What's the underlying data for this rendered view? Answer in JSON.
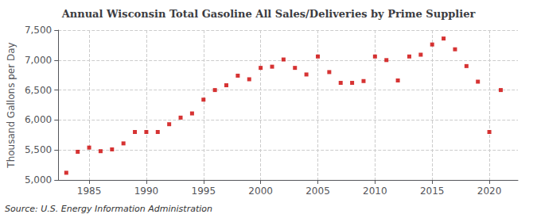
{
  "chart_data": {
    "type": "scatter",
    "title": "Annual Wisconsin Total Gasoline All Sales/Deliveries by Prime Supplier",
    "ylabel": "Thousand Gallons per Day",
    "source": "Source: U.S. Energy Information Administration",
    "x": [
      1983,
      1984,
      1985,
      1986,
      1987,
      1988,
      1989,
      1990,
      1991,
      1992,
      1993,
      1994,
      1995,
      1996,
      1997,
      1998,
      1999,
      2000,
      2001,
      2002,
      2003,
      2004,
      2005,
      2006,
      2007,
      2008,
      2009,
      2010,
      2011,
      2012,
      2013,
      2014,
      2015,
      2016,
      2017,
      2018,
      2019,
      2020,
      2021
    ],
    "values": [
      5120,
      5470,
      5540,
      5480,
      5510,
      5610,
      5800,
      5800,
      5800,
      5930,
      6040,
      6110,
      6340,
      6500,
      6580,
      6740,
      6680,
      6870,
      6890,
      7010,
      6870,
      6760,
      7060,
      6800,
      6620,
      6620,
      6650,
      7060,
      7000,
      6660,
      7060,
      7090,
      7260,
      7360,
      7180,
      6900,
      6640,
      5800,
      6500
    ],
    "color": "#cc0000",
    "marker": "square",
    "xlim": [
      1982.3,
      2022.5
    ],
    "xticks": [
      1985,
      1990,
      1995,
      2000,
      2005,
      2010,
      2015,
      2020
    ],
    "ylim": [
      5000,
      7500
    ],
    "yticks": [
      {
        "value": 5000,
        "label": "5,000"
      },
      {
        "value": 5500,
        "label": "5,500"
      },
      {
        "value": 6000,
        "label": "6,000"
      },
      {
        "value": 6500,
        "label": "6,500"
      },
      {
        "value": 7000,
        "label": "7,000"
      },
      {
        "value": 7500,
        "label": "7,500"
      }
    ],
    "grid": true
  }
}
